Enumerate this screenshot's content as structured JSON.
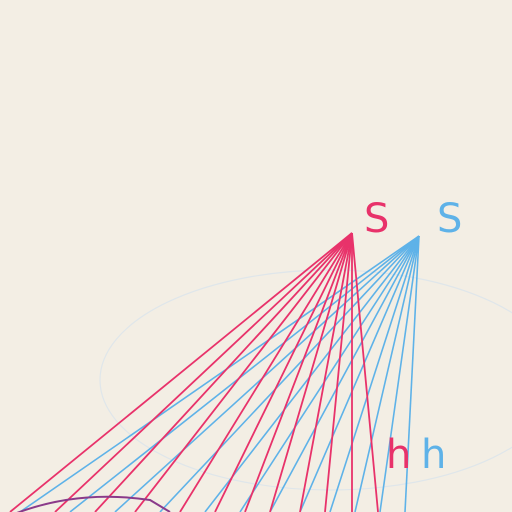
{
  "diagram": {
    "labels": {
      "apex_red": "S",
      "apex_blue": "S",
      "height_red": "h",
      "height_blue": "h"
    },
    "colors": {
      "paper": "#f3eee4",
      "red": "#e8326a",
      "blue": "#5eb2e8",
      "purple": "#8a3a8a"
    }
  }
}
